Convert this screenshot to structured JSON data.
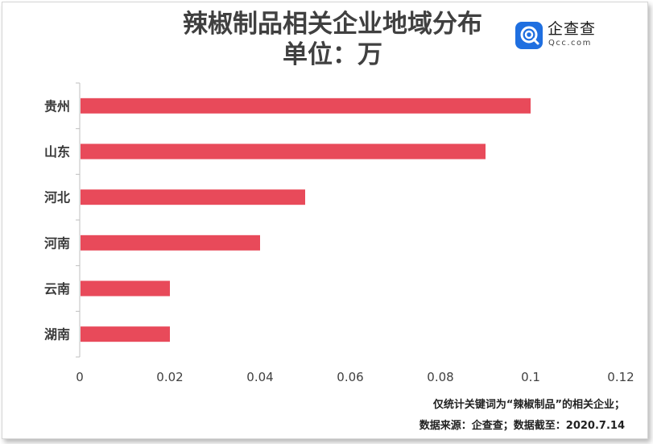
{
  "logo": {
    "name_cn": "企查查",
    "name_en": "Qcc.com",
    "brand_color": "#1f6fe0"
  },
  "footnote": {
    "line1": "仅统计关键词为“辣椒制品”的相关企业；",
    "line2": "数据来源：企查查；数据截至：2020.7.14"
  },
  "chart_data": {
    "type": "bar",
    "orientation": "horizontal",
    "title": "辣椒制品相关企业地域分布",
    "subtitle": "单位：万",
    "categories": [
      "贵州",
      "山东",
      "河北",
      "河南",
      "云南",
      "湖南"
    ],
    "values": [
      0.1,
      0.09,
      0.05,
      0.04,
      0.02,
      0.02
    ],
    "xlim": [
      0,
      0.12
    ],
    "xticks": [
      "0",
      "0.02",
      "0.04",
      "0.06",
      "0.08",
      "0.1",
      "0.12"
    ],
    "xtick_values": [
      0,
      0.02,
      0.04,
      0.06,
      0.08,
      0.1,
      0.12
    ],
    "bar_color": "#e84a5a",
    "grid": false,
    "legend": "none"
  }
}
